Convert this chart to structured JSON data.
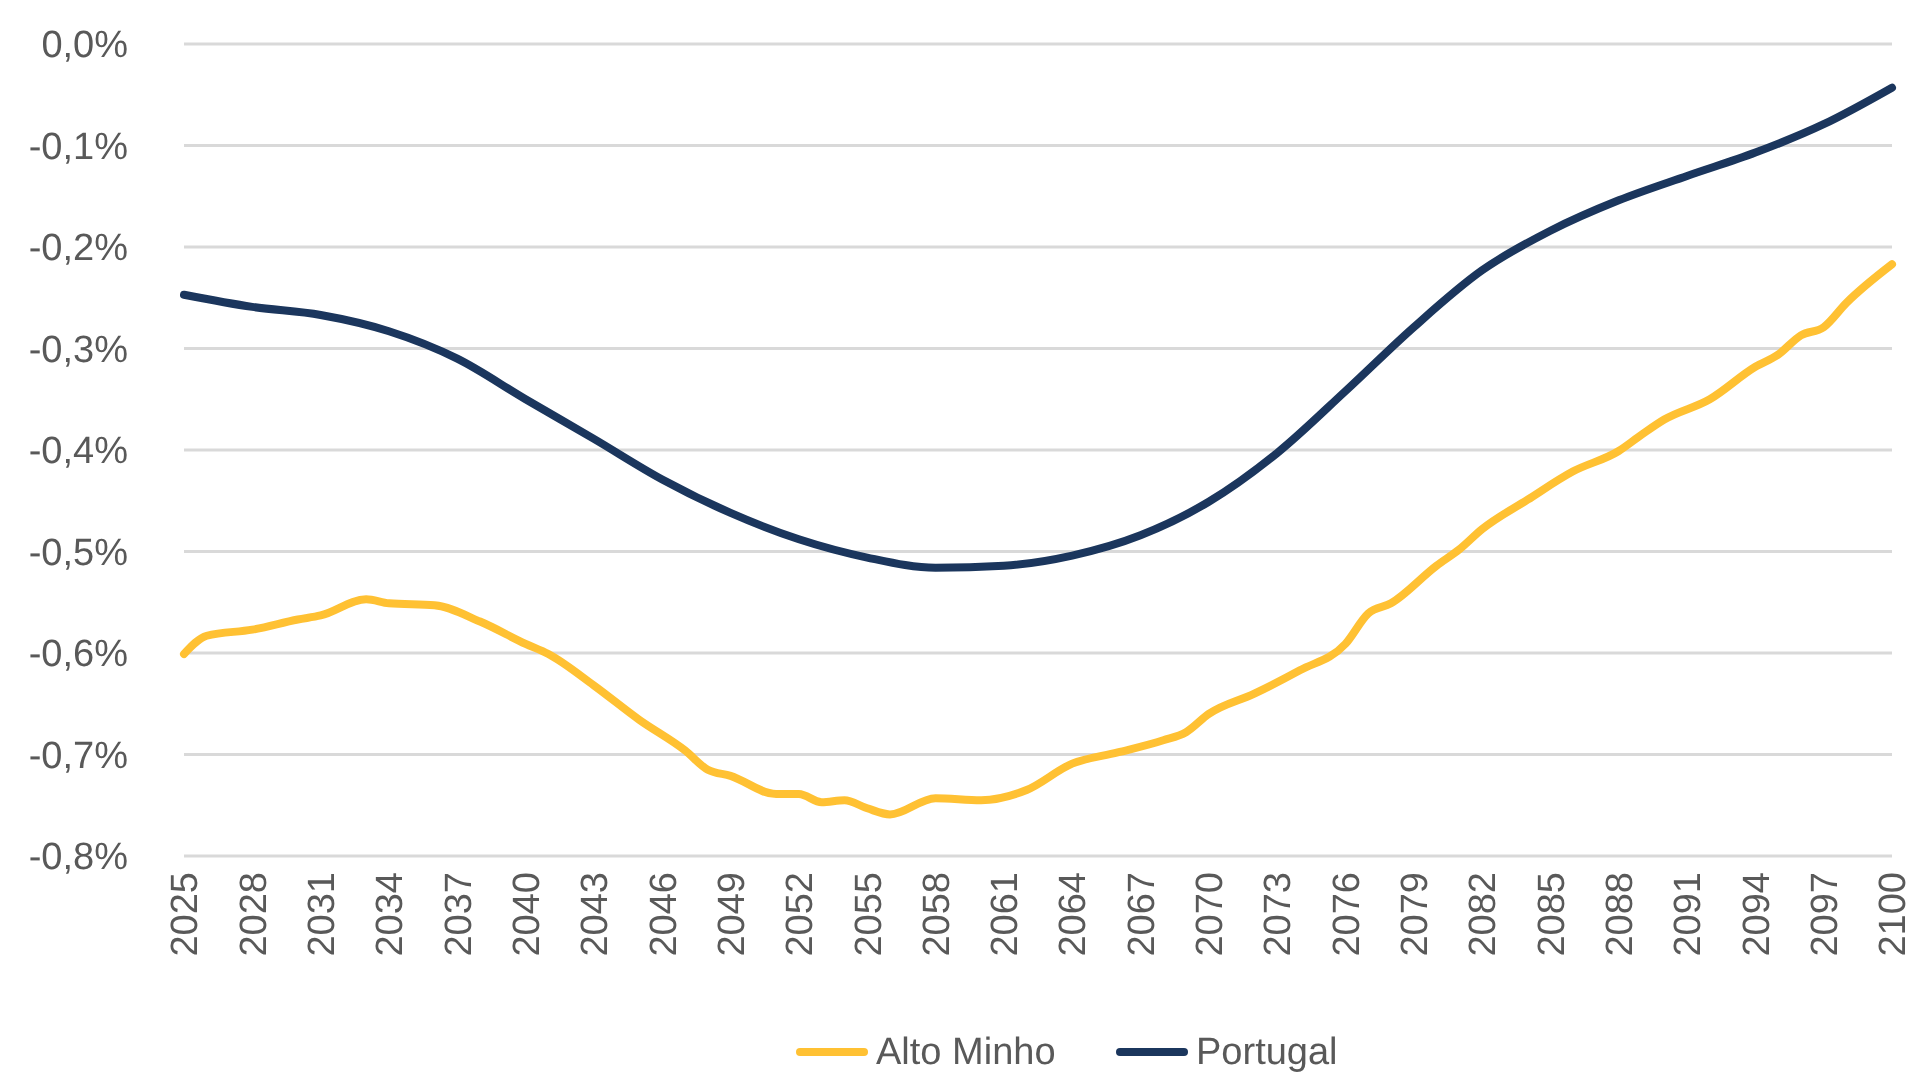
{
  "chart_data": {
    "type": "line",
    "xlim": [
      2025,
      2100
    ],
    "xticks": [
      2025,
      2028,
      2031,
      2034,
      2037,
      2040,
      2043,
      2046,
      2049,
      2052,
      2055,
      2058,
      2061,
      2064,
      2067,
      2070,
      2073,
      2076,
      2079,
      2082,
      2085,
      2088,
      2091,
      2094,
      2097,
      2100
    ],
    "ylim": [
      -0.8,
      0
    ],
    "yticks": [
      {
        "value": 0,
        "label": "0,0%"
      },
      {
        "value": -0.1,
        "label": "-0,1%"
      },
      {
        "value": -0.2,
        "label": "-0,2%"
      },
      {
        "value": -0.3,
        "label": "-0,3%"
      },
      {
        "value": -0.4,
        "label": "-0,4%"
      },
      {
        "value": -0.5,
        "label": "-0,5%"
      },
      {
        "value": -0.6,
        "label": "-0,6%"
      },
      {
        "value": -0.7,
        "label": "-0,7%"
      },
      {
        "value": -0.8,
        "label": "-0,8%"
      }
    ],
    "grid": "y",
    "legend": "bottom",
    "marker": "none",
    "line_style": "solid",
    "series": [
      {
        "name": "Alto Minho",
        "color": "#ffc133",
        "x": [
          2025,
          2026,
          2028,
          2030,
          2031,
          2033,
          2034,
          2036,
          2038,
          2040,
          2041,
          2043,
          2045,
          2047,
          2048,
          2049,
          2051,
          2052,
          2053,
          2054,
          2055,
          2056,
          2058,
          2060,
          2062,
          2064,
          2066,
          2068,
          2069,
          2070,
          2072,
          2074,
          2076,
          2077,
          2078,
          2080,
          2081,
          2082,
          2084,
          2086,
          2088,
          2089,
          2090,
          2092,
          2094,
          2095,
          2096,
          2097,
          2098,
          2100
        ],
        "values": [
          -0.601,
          -0.583,
          -0.577,
          -0.567,
          -0.563,
          -0.547,
          -0.551,
          -0.553,
          -0.569,
          -0.591,
          -0.601,
          -0.632,
          -0.666,
          -0.696,
          -0.715,
          -0.721,
          -0.739,
          -0.739,
          -0.747,
          -0.745,
          -0.753,
          -0.759,
          -0.743,
          -0.745,
          -0.735,
          -0.709,
          -0.698,
          -0.686,
          -0.678,
          -0.66,
          -0.64,
          -0.617,
          -0.591,
          -0.561,
          -0.551,
          -0.514,
          -0.498,
          -0.478,
          -0.449,
          -0.421,
          -0.401,
          -0.385,
          -0.37,
          -0.35,
          -0.318,
          -0.306,
          -0.287,
          -0.279,
          -0.255,
          -0.217
        ]
      },
      {
        "name": "Portugal",
        "color": "#1b365d",
        "x": [
          2025,
          2028,
          2031,
          2034,
          2037,
          2040,
          2043,
          2046,
          2049,
          2052,
          2055,
          2058,
          2061,
          2064,
          2067,
          2070,
          2073,
          2076,
          2079,
          2082,
          2085,
          2088,
          2091,
          2094,
          2097,
          2100
        ],
        "values": [
          -0.247,
          -0.259,
          -0.267,
          -0.283,
          -0.31,
          -0.35,
          -0.389,
          -0.429,
          -0.462,
          -0.488,
          -0.506,
          -0.516,
          -0.514,
          -0.504,
          -0.484,
          -0.451,
          -0.403,
          -0.342,
          -0.279,
          -0.223,
          -0.184,
          -0.154,
          -0.13,
          -0.107,
          -0.079,
          -0.043
        ]
      }
    ]
  }
}
